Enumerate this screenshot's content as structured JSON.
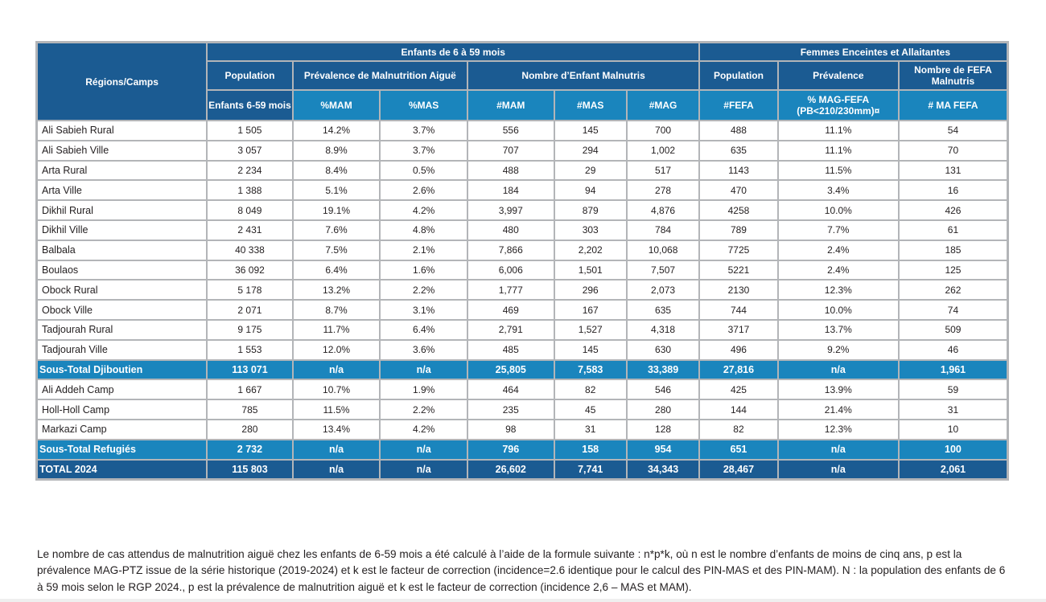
{
  "header": {
    "regions_label": "Régions/Camps",
    "group_children": "Enfants de 6 à 59 mois",
    "group_women": "Femmes Enceintes et Allaitantes",
    "sub": {
      "population": "Population",
      "prevalence_malnutrition": "Prévalence de Malnutrition Aiguë",
      "nombre_malnutris": "Nombre d’Enfant Malnutris",
      "population_fefa": "Population",
      "prevalence_fefa": "Prévalence",
      "nombre_fefa": "Nombre de FEFA Malnutris"
    },
    "cols": {
      "enfants": "Enfants 6-59 mois",
      "pct_mam": "%MAM",
      "pct_mas": "%MAS",
      "n_mam": "#MAM",
      "n_mas": "#MAS",
      "n_mag": "#MAG",
      "n_fefa": "#FEFA",
      "pct_mag_fefa": "% MAG-FEFA (PB<210/230mm)¤",
      "ma_fefa": "# MA FEFA"
    }
  },
  "rows": [
    {
      "type": "data",
      "cells": [
        "Ali Sabieh Rural",
        "1 505",
        "14.2%",
        "3.7%",
        "556",
        "145",
        "700",
        "488",
        "11.1%",
        "54"
      ]
    },
    {
      "type": "data",
      "cells": [
        "Ali Sabieh Ville",
        "3 057",
        "8.9%",
        "3.7%",
        "707",
        "294",
        "1,002",
        "635",
        "11.1%",
        "70"
      ]
    },
    {
      "type": "data",
      "cells": [
        "Arta Rural",
        "2 234",
        "8.4%",
        "0.5%",
        "488",
        "29",
        "517",
        "1143",
        "11.5%",
        "131"
      ]
    },
    {
      "type": "data",
      "cells": [
        "Arta Ville",
        "1 388",
        "5.1%",
        "2.6%",
        "184",
        "94",
        "278",
        "470",
        "3.4%",
        "16"
      ]
    },
    {
      "type": "data",
      "cells": [
        "Dikhil Rural",
        "8 049",
        "19.1%",
        "4.2%",
        "3,997",
        "879",
        "4,876",
        "4258",
        "10.0%",
        "426"
      ]
    },
    {
      "type": "data",
      "cells": [
        "Dikhil Ville",
        "2 431",
        "7.6%",
        "4.8%",
        "480",
        "303",
        "784",
        "789",
        "7.7%",
        "61"
      ]
    },
    {
      "type": "data",
      "cells": [
        "Balbala",
        "40 338",
        "7.5%",
        "2.1%",
        "7,866",
        "2,202",
        "10,068",
        "7725",
        "2.4%",
        "185"
      ]
    },
    {
      "type": "data",
      "cells": [
        "Boulaos",
        "36 092",
        "6.4%",
        "1.6%",
        "6,006",
        "1,501",
        "7,507",
        "5221",
        "2.4%",
        "125"
      ]
    },
    {
      "type": "data",
      "cells": [
        "Obock Rural",
        "5 178",
        "13.2%",
        "2.2%",
        "1,777",
        "296",
        "2,073",
        "2130",
        "12.3%",
        "262"
      ]
    },
    {
      "type": "data",
      "cells": [
        "Obock Ville",
        "2 071",
        "8.7%",
        "3.1%",
        "469",
        "167",
        "635",
        "744",
        "10.0%",
        "74"
      ]
    },
    {
      "type": "data",
      "cells": [
        "Tadjourah Rural",
        "9 175",
        "11.7%",
        "6.4%",
        "2,791",
        "1,527",
        "4,318",
        "3717",
        "13.7%",
        "509"
      ]
    },
    {
      "type": "data",
      "cells": [
        "Tadjourah Ville",
        "1 553",
        "12.0%",
        "3.6%",
        "485",
        "145",
        "630",
        "496",
        "9.2%",
        "46"
      ]
    },
    {
      "type": "subtotal",
      "cells": [
        "Sous-Total Djiboutien",
        "113 071",
        "n/a",
        "n/a",
        "25,805",
        "7,583",
        "33,389",
        "27,816",
        "n/a",
        "1,961"
      ]
    },
    {
      "type": "data",
      "cells": [
        "Ali Addeh Camp",
        "1 667",
        "10.7%",
        "1.9%",
        "464",
        "82",
        "546",
        "425",
        "13.9%",
        "59"
      ]
    },
    {
      "type": "data",
      "cells": [
        "Holl-Holl Camp",
        "785",
        "11.5%",
        "2.2%",
        "235",
        "45",
        "280",
        "144",
        "21.4%",
        "31"
      ]
    },
    {
      "type": "data",
      "cells": [
        "Markazi Camp",
        "280",
        "13.4%",
        "4.2%",
        "98",
        "31",
        "128",
        "82",
        "12.3%",
        "10"
      ]
    },
    {
      "type": "subtotal",
      "cells": [
        "Sous-Total Refugiés",
        "2 732",
        "n/a",
        "n/a",
        "796",
        "158",
        "954",
        "651",
        "n/a",
        "100"
      ]
    },
    {
      "type": "total",
      "cells": [
        "TOTAL 2024",
        "115 803",
        "n/a",
        "n/a",
        "26,602",
        "7,741",
        "34,343",
        "28,467",
        "n/a",
        "2,061"
      ]
    }
  ],
  "footnote": "Le nombre de cas attendus de malnutrition aiguë chez les enfants de 6-59 mois a été calculé à l’aide de la formule suivante : n*p*k, où n est le nombre d’enfants de moins de cinq ans, p est la prévalence MAG-PTZ issue de la série historique (2019-2024) et k est le facteur de correction (incidence=2.6 identique pour le calcul des PIN-MAS et des PIN-MAM). N : la population des enfants de 6 à 59 mois selon le RGP 2024., p est la prévalence de malnutrition aiguë et k est le facteur de correction (incidence 2,6 – MAS et MAM)."
}
